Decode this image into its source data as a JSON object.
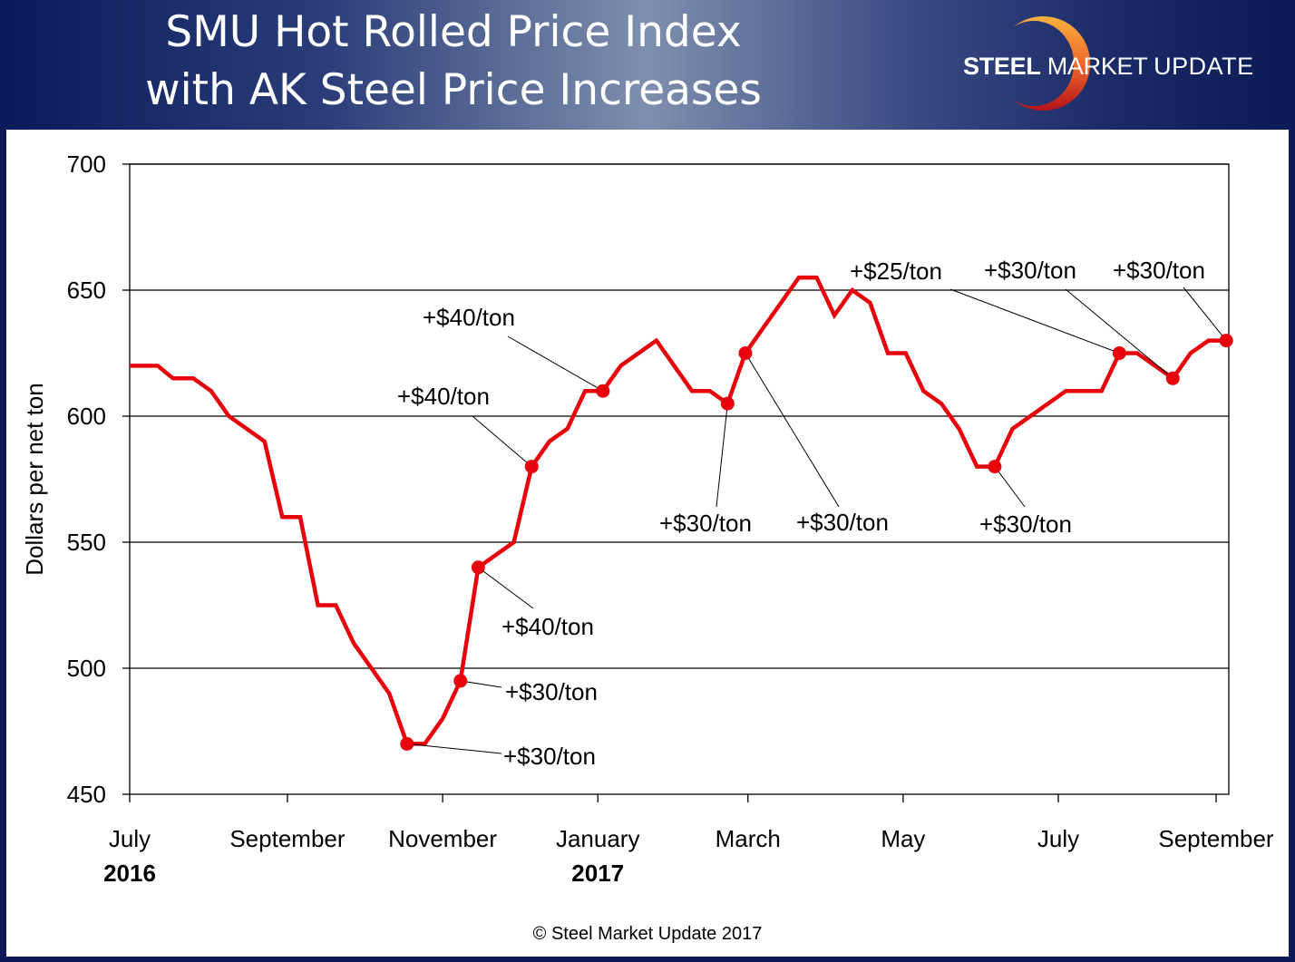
{
  "header": {
    "title_line1": "SMU Hot Rolled Price Index",
    "title_line2": "with AK Steel Price Increases",
    "logo": {
      "word1": "STEEL",
      "word2": "MARKET",
      "word3": "UPDATE",
      "icon": "crescent-icon"
    }
  },
  "footer": {
    "copyright": "© Steel Market Update 2017"
  },
  "colors": {
    "line": "#e8000b",
    "header_dark": "#0a1a5c",
    "logo_orange": "#f7a23a",
    "logo_red": "#b5121b"
  },
  "chart_data": {
    "type": "line",
    "title": "SMU Hot Rolled Price Index with AK Steel Price Increases",
    "ylabel": "Dollars per net ton",
    "xlabel": "",
    "ylim": [
      450,
      700
    ],
    "yticks": [
      450,
      500,
      550,
      600,
      650,
      700
    ],
    "xlim": [
      "2016-07-01",
      "2017-09-06"
    ],
    "xticks": [
      {
        "date": "2016-07-01",
        "label": "July",
        "year": "2016"
      },
      {
        "date": "2016-09-01",
        "label": "September",
        "year": ""
      },
      {
        "date": "2016-11-01",
        "label": "November",
        "year": ""
      },
      {
        "date": "2017-01-01",
        "label": "January",
        "year": "2017"
      },
      {
        "date": "2017-03-01",
        "label": "March",
        "year": ""
      },
      {
        "date": "2017-05-01",
        "label": "May",
        "year": ""
      },
      {
        "date": "2017-07-01",
        "label": "July",
        "year": ""
      },
      {
        "date": "2017-09-01",
        "label": "September",
        "year": ""
      }
    ],
    "grid": "horizontal",
    "series": [
      {
        "points": [
          [
            "2016-07-01",
            620
          ],
          [
            "2016-07-12",
            620
          ],
          [
            "2016-07-18",
            615
          ],
          [
            "2016-07-26",
            615
          ],
          [
            "2016-08-02",
            610
          ],
          [
            "2016-08-09",
            600
          ],
          [
            "2016-08-23",
            590
          ],
          [
            "2016-08-30",
            560
          ],
          [
            "2016-09-06",
            560
          ],
          [
            "2016-09-13",
            525
          ],
          [
            "2016-09-20",
            525
          ],
          [
            "2016-09-27",
            510
          ],
          [
            "2016-10-11",
            490
          ],
          [
            "2016-10-18",
            470
          ],
          [
            "2016-10-25",
            470
          ],
          [
            "2016-11-01",
            480
          ],
          [
            "2016-11-08",
            495
          ],
          [
            "2016-11-15",
            540
          ],
          [
            "2016-11-29",
            550
          ],
          [
            "2016-12-06",
            580
          ],
          [
            "2016-12-13",
            590
          ],
          [
            "2016-12-20",
            595
          ],
          [
            "2016-12-27",
            610
          ],
          [
            "2017-01-03",
            610
          ],
          [
            "2017-01-10",
            620
          ],
          [
            "2017-01-24",
            630
          ],
          [
            "2017-02-07",
            610
          ],
          [
            "2017-02-14",
            610
          ],
          [
            "2017-02-21",
            605
          ],
          [
            "2017-02-28",
            625
          ],
          [
            "2017-03-21",
            655
          ],
          [
            "2017-03-28",
            655
          ],
          [
            "2017-04-04",
            640
          ],
          [
            "2017-04-11",
            650
          ],
          [
            "2017-04-18",
            645
          ],
          [
            "2017-04-25",
            625
          ],
          [
            "2017-05-02",
            625
          ],
          [
            "2017-05-09",
            610
          ],
          [
            "2017-05-16",
            605
          ],
          [
            "2017-05-23",
            595
          ],
          [
            "2017-05-30",
            580
          ],
          [
            "2017-06-06",
            580
          ],
          [
            "2017-06-13",
            595
          ],
          [
            "2017-06-20",
            600
          ],
          [
            "2017-07-04",
            610
          ],
          [
            "2017-07-18",
            610
          ],
          [
            "2017-07-25",
            625
          ],
          [
            "2017-08-01",
            625
          ],
          [
            "2017-08-15",
            615
          ],
          [
            "2017-08-22",
            625
          ],
          [
            "2017-08-29",
            630
          ],
          [
            "2017-09-05",
            630
          ]
        ]
      }
    ],
    "annotations": [
      {
        "date": "2016-10-18",
        "value": 470,
        "label": "+$30/ton"
      },
      {
        "date": "2016-11-08",
        "value": 495,
        "label": "+$30/ton"
      },
      {
        "date": "2016-11-15",
        "value": 540,
        "label": "+$40/ton"
      },
      {
        "date": "2016-12-06",
        "value": 580,
        "label": "+$40/ton"
      },
      {
        "date": "2017-01-03",
        "value": 610,
        "label": "+$40/ton"
      },
      {
        "date": "2017-02-21",
        "value": 605,
        "label": "+$30/ton"
      },
      {
        "date": "2017-02-28",
        "value": 625,
        "label": "+$30/ton"
      },
      {
        "date": "2017-06-06",
        "value": 580,
        "label": "+$30/ton"
      },
      {
        "date": "2017-07-25",
        "value": 625,
        "label": "+$25/ton"
      },
      {
        "date": "2017-08-15",
        "value": 615,
        "label": "+$30/ton"
      },
      {
        "date": "2017-09-05",
        "value": 630,
        "label": "+$30/ton"
      }
    ]
  }
}
